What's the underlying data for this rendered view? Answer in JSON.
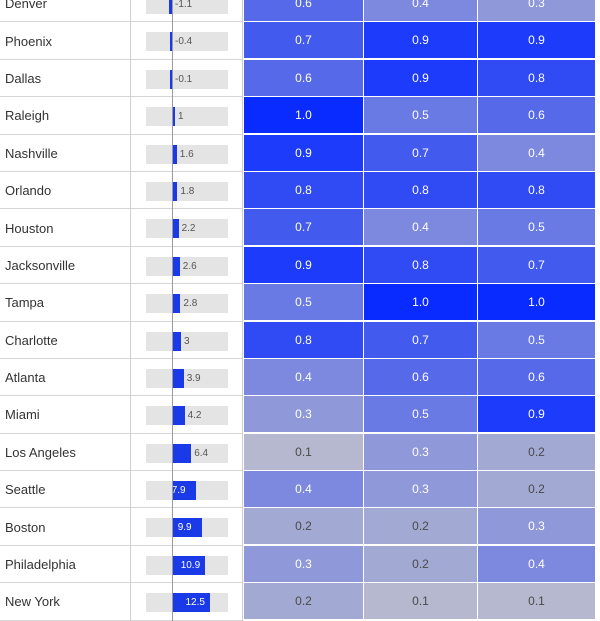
{
  "rows": [
    {
      "city": "Denver",
      "change": -1.1,
      "change_label": "-1.1",
      "scores": [
        "0.6",
        "0.4",
        "0.3"
      ]
    },
    {
      "city": "Phoenix",
      "change": -0.4,
      "change_label": "-0.4",
      "scores": [
        "0.7",
        "0.9",
        "0.9"
      ]
    },
    {
      "city": "Dallas",
      "change": -0.1,
      "change_label": "-0.1",
      "scores": [
        "0.6",
        "0.9",
        "0.8"
      ]
    },
    {
      "city": "Raleigh",
      "change": 1,
      "change_label": "1",
      "scores": [
        "1.0",
        "0.5",
        "0.6"
      ]
    },
    {
      "city": "Nashville",
      "change": 1.6,
      "change_label": "1.6",
      "scores": [
        "0.9",
        "0.7",
        "0.4"
      ]
    },
    {
      "city": "Orlando",
      "change": 1.8,
      "change_label": "1.8",
      "scores": [
        "0.8",
        "0.8",
        "0.8"
      ]
    },
    {
      "city": "Houston",
      "change": 2.2,
      "change_label": "2.2",
      "scores": [
        "0.7",
        "0.4",
        "0.5"
      ]
    },
    {
      "city": "Jacksonville",
      "change": 2.6,
      "change_label": "2.6",
      "scores": [
        "0.9",
        "0.8",
        "0.7"
      ]
    },
    {
      "city": "Tampa",
      "change": 2.8,
      "change_label": "2.8",
      "scores": [
        "0.5",
        "1.0",
        "1.0"
      ]
    },
    {
      "city": "Charlotte",
      "change": 3,
      "change_label": "3",
      "scores": [
        "0.8",
        "0.7",
        "0.5"
      ]
    },
    {
      "city": "Atlanta",
      "change": 3.9,
      "change_label": "3.9",
      "scores": [
        "0.4",
        "0.6",
        "0.6"
      ]
    },
    {
      "city": "Miami",
      "change": 4.2,
      "change_label": "4.2",
      "scores": [
        "0.3",
        "0.5",
        "0.9"
      ]
    },
    {
      "city": "Los Angeles",
      "change": 6.4,
      "change_label": "6.4",
      "scores": [
        "0.1",
        "0.3",
        "0.2"
      ]
    },
    {
      "city": "Seattle",
      "change": 7.9,
      "change_label": "7.9",
      "scores": [
        "0.4",
        "0.3",
        "0.2"
      ]
    },
    {
      "city": "Boston",
      "change": 9.9,
      "change_label": "9.9",
      "scores": [
        "0.2",
        "0.2",
        "0.3"
      ]
    },
    {
      "city": "Philadelphia",
      "change": 10.9,
      "change_label": "10.9",
      "scores": [
        "0.3",
        "0.2",
        "0.4"
      ]
    },
    {
      "city": "New York",
      "change": 12.5,
      "change_label": "12.5",
      "scores": [
        "0.2",
        "0.1",
        "0.1"
      ]
    }
  ],
  "colors": {
    "bar": "#1a3ae8",
    "bar_track": "#e4e4e4",
    "heat_low": "#c8c8c8",
    "heat_high": "#0a2bff",
    "separator": "#cfcfcf"
  }
}
